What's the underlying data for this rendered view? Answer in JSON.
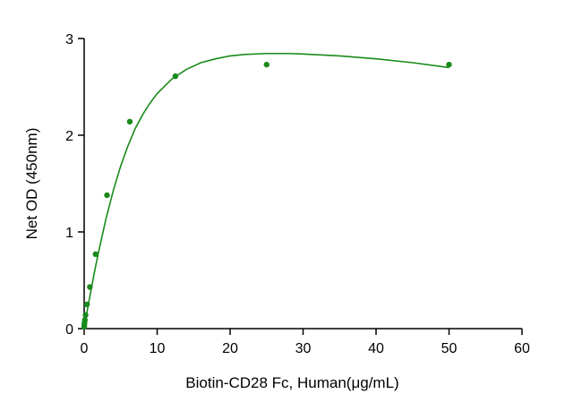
{
  "chart_data": {
    "type": "scatter",
    "xlabel": "Biotin-CD28 Fc, Human(μg/mL)",
    "ylabel": "Net OD (450nm)",
    "xlim": [
      0,
      60
    ],
    "ylim": [
      0,
      3
    ],
    "x_ticks": [
      0,
      10,
      20,
      30,
      40,
      50,
      60
    ],
    "y_ticks": [
      0,
      1,
      2,
      3
    ],
    "grid": false,
    "legend": "none",
    "color": "#1a8a1a",
    "series": [
      {
        "x": [
          0.012,
          0.024,
          0.049,
          0.098,
          0.195,
          0.39,
          0.781,
          1.563,
          3.125,
          6.25,
          12.5,
          25,
          50
        ],
        "y": [
          0.02,
          0.04,
          0.06,
          0.09,
          0.14,
          0.25,
          0.43,
          0.77,
          1.38,
          2.14,
          2.61,
          2.73,
          2.73
        ]
      }
    ],
    "fit_curve": {
      "x": [
        0,
        0.5,
        1,
        1.5,
        2,
        3,
        4,
        5,
        6,
        7,
        8,
        9,
        10,
        12,
        14,
        16,
        18,
        20,
        22,
        25,
        28,
        30,
        35,
        40,
        45,
        50
      ],
      "y": [
        0.0,
        0.22,
        0.42,
        0.62,
        0.8,
        1.14,
        1.43,
        1.68,
        1.89,
        2.07,
        2.21,
        2.33,
        2.43,
        2.58,
        2.68,
        2.75,
        2.79,
        2.82,
        2.835,
        2.845,
        2.845,
        2.84,
        2.82,
        2.79,
        2.75,
        2.7
      ]
    }
  }
}
